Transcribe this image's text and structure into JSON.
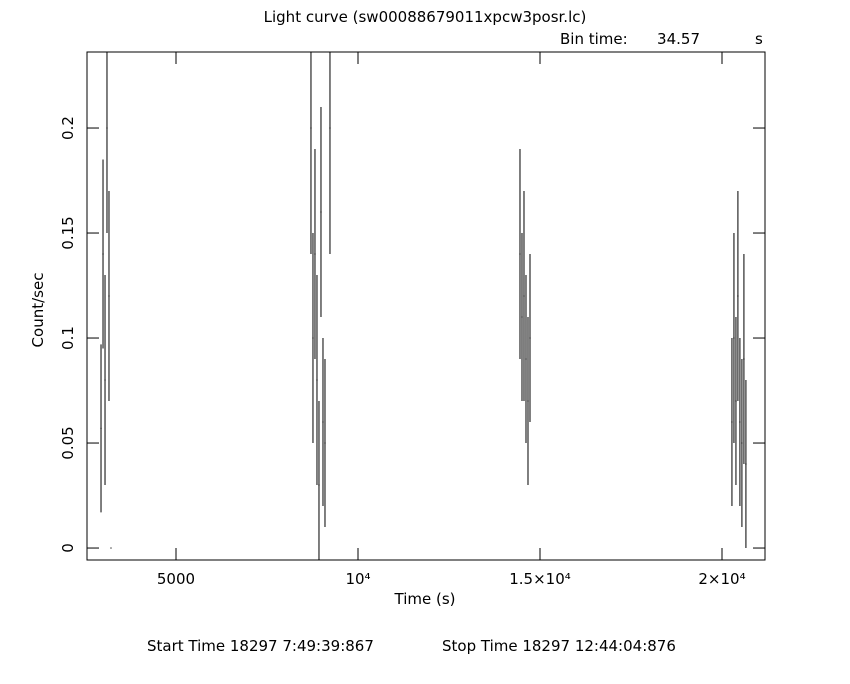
{
  "chart_data": {
    "type": "errorbar",
    "title": "Light curve (sw00088679011xpcw3posr.lc)",
    "bin_time_label": "Bin time:",
    "bin_time": 34.57,
    "bin_time_unit": "s",
    "x_label": "Time (s)",
    "y_label": "Count/sec",
    "start_time": "Start Time 18297  7:49:39:867",
    "stop_time": "Stop Time 18297 12:44:04:876",
    "color": "#000000",
    "x": [
      2940,
      2995,
      3050,
      3104,
      3159,
      3214,
      8708,
      8763,
      8818,
      8873,
      8928,
      8983,
      9038,
      9093,
      9230,
      14450,
      14505,
      14560,
      14615,
      14670,
      14725,
      20273,
      20328,
      20383,
      20437,
      20492,
      20547,
      20602,
      20657
    ],
    "values": [
      0.057,
      0.14,
      0.08,
      0.2,
      0.12,
      0,
      0.2,
      0.1,
      0.14,
      0.08,
      0.03,
      0.16,
      0.06,
      0.05,
      0.2,
      0.14,
      0.11,
      0.12,
      0.09,
      0.07,
      0.1,
      0.06,
      0.1,
      0.07,
      0.12,
      0.06,
      0.05,
      0.09,
      0.04
    ],
    "errors": [
      0.04,
      0.045,
      0.05,
      0.05,
      0.05,
      0,
      0.06,
      0.05,
      0.05,
      0.05,
      0.04,
      0.05,
      0.04,
      0.04,
      0.06,
      0.05,
      0.04,
      0.05,
      0.04,
      0.04,
      0.04,
      0.04,
      0.05,
      0.04,
      0.05,
      0.04,
      0.04,
      0.05,
      0.04
    ],
    "xlim": [
      2555,
      21181
    ],
    "ylim": [
      -0.0057,
      0.2362
    ],
    "xticks": [
      5000,
      {
        "value": 10000,
        "label": "10⁴"
      },
      {
        "value": 15000,
        "label": "1.5×10⁴"
      },
      {
        "value": 20000,
        "label": "2×10⁴"
      }
    ],
    "yticks": [
      0,
      0.05,
      0.1,
      0.15,
      0.2
    ]
  }
}
